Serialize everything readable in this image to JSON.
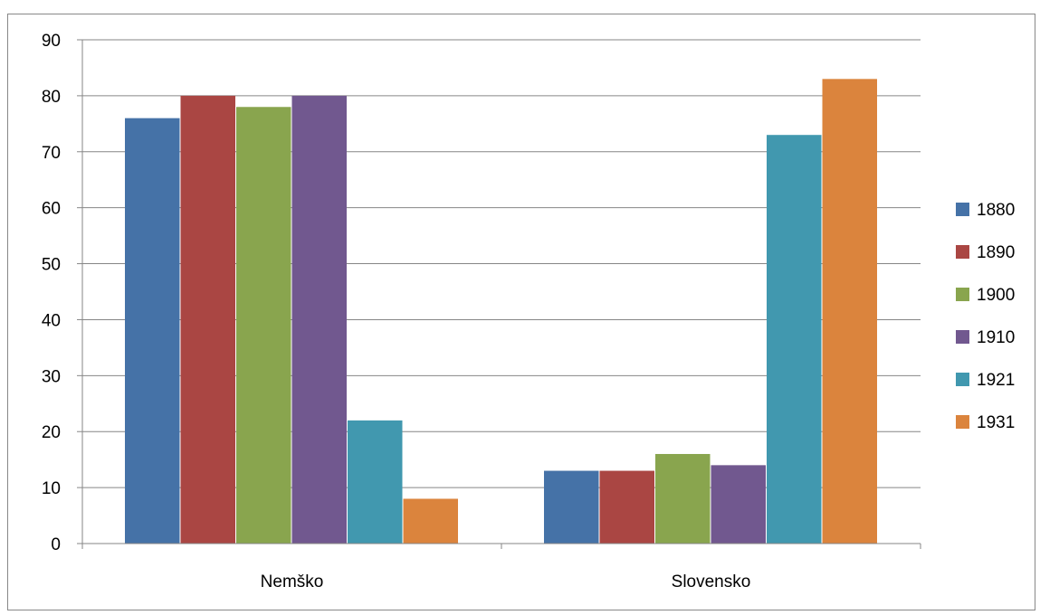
{
  "chart_data": {
    "type": "bar",
    "categories": [
      "Nemško",
      "Slovensko"
    ],
    "series": [
      {
        "name": "1880",
        "values": [
          76,
          13
        ],
        "color": "#4572a7"
      },
      {
        "name": "1890",
        "values": [
          80,
          13
        ],
        "color": "#aa4643"
      },
      {
        "name": "1900",
        "values": [
          78,
          16
        ],
        "color": "#89a54e"
      },
      {
        "name": "1910",
        "values": [
          80,
          14
        ],
        "color": "#71588f"
      },
      {
        "name": "1921",
        "values": [
          22,
          73
        ],
        "color": "#4198af"
      },
      {
        "name": "1931",
        "values": [
          8,
          83
        ],
        "color": "#db843d"
      }
    ],
    "ylim": [
      0,
      90
    ],
    "yticks": [
      "0",
      "10",
      "20",
      "30",
      "40",
      "50",
      "60",
      "70",
      "80",
      "90"
    ],
    "grid": true,
    "legend_position": "right"
  }
}
